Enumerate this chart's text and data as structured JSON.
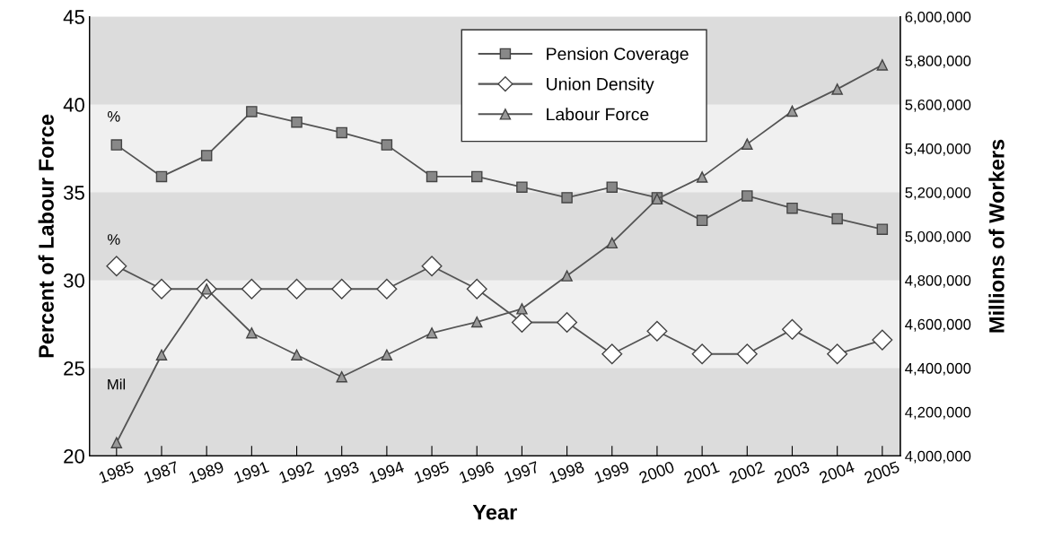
{
  "chart_data": {
    "type": "line",
    "xlabel": "Year",
    "ylabel": "Percent of Labour Force",
    "y2label": "Millions of Workers",
    "categories": [
      "1985",
      "1987",
      "1989",
      "1991",
      "1992",
      "1993",
      "1994",
      "1995",
      "1996",
      "1997",
      "1998",
      "1999",
      "2000",
      "2001",
      "2002",
      "2003",
      "2004",
      "2005"
    ],
    "series": [
      {
        "name": "Pension Coverage",
        "color": "#555555",
        "marker": "square",
        "values": [
          37.7,
          35.9,
          37.1,
          39.6,
          39.0,
          38.4,
          37.7,
          35.9,
          35.9,
          35.3,
          34.7,
          35.3,
          34.7,
          33.4,
          34.8,
          34.1,
          33.5,
          32.9
        ]
      },
      {
        "name": "Union Density",
        "color": "#555555",
        "marker": "diamond",
        "values": [
          30.8,
          29.5,
          29.5,
          29.5,
          29.5,
          29.5,
          29.5,
          30.8,
          29.5,
          27.6,
          27.6,
          25.8,
          27.1,
          25.8,
          25.8,
          27.2,
          25.8,
          26.6
        ]
      },
      {
        "name": "Labour Force",
        "color": "#555555",
        "marker": "triangle",
        "axis": "y2",
        "values": [
          4060000,
          4460000,
          4760000,
          4560000,
          4460000,
          4360000,
          4460000,
          4560000,
          4610000,
          4670000,
          4820000,
          4970000,
          5170000,
          5270000,
          5420000,
          5570000,
          5670000,
          5780000
        ]
      }
    ],
    "ylim": [
      20,
      45
    ],
    "yticks": [
      20,
      25,
      30,
      35,
      40,
      45
    ],
    "y2lim": [
      4000000,
      6000000
    ],
    "y2ticks": [
      {
        "value": 4000000,
        "label": "4,000,000"
      },
      {
        "value": 4200000,
        "label": "4,200,000"
      },
      {
        "value": 4400000,
        "label": "4,400,000"
      },
      {
        "value": 4600000,
        "label": "4,600,000"
      },
      {
        "value": 4800000,
        "label": "4,800,000"
      },
      {
        "value": 5000000,
        "label": "5,000,000"
      },
      {
        "value": 5200000,
        "label": "5,200,000"
      },
      {
        "value": 5400000,
        "label": "5,400,000"
      },
      {
        "value": 5600000,
        "label": "5,600,000"
      },
      {
        "value": 5800000,
        "label": "5,800,000"
      },
      {
        "value": 6000000,
        "label": "6,000,000"
      }
    ],
    "bands": [
      {
        "axis": "y",
        "from": 40,
        "to": 45,
        "color": "#dcdcdc"
      },
      {
        "axis": "y",
        "from": 30,
        "to": 35,
        "color": "#dcdcdc"
      },
      {
        "axis": "y",
        "from": 20,
        "to": 25,
        "color": "#dcdcdc"
      }
    ],
    "annotations": [
      "%",
      "%",
      "Mil"
    ],
    "legend": "top",
    "grid": false,
    "line_style": "solid"
  }
}
